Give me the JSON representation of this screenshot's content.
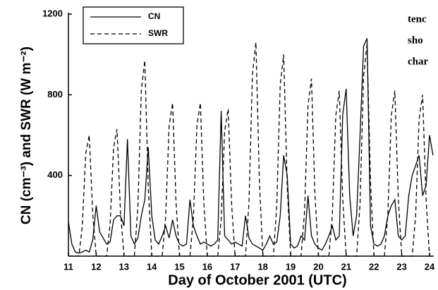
{
  "chart_data": {
    "type": "line",
    "xlabel": "Day of October 2001 (UTC)",
    "ylabel": "CN (cm⁻³) and SWR (W m⁻²)",
    "side_text": [
      "tenc",
      "sho",
      "char"
    ],
    "x": [
      11,
      11.125,
      11.25,
      11.375,
      11.5,
      11.625,
      11.75,
      11.875,
      12,
      12.125,
      12.25,
      12.375,
      12.5,
      12.625,
      12.75,
      12.875,
      13,
      13.125,
      13.25,
      13.375,
      13.5,
      13.625,
      13.75,
      13.875,
      14,
      14.125,
      14.25,
      14.375,
      14.5,
      14.625,
      14.75,
      14.875,
      15,
      15.125,
      15.25,
      15.375,
      15.5,
      15.625,
      15.75,
      15.875,
      16,
      16.125,
      16.25,
      16.375,
      16.5,
      16.625,
      16.75,
      16.875,
      17,
      17.125,
      17.25,
      17.375,
      17.5,
      17.625,
      17.75,
      17.875,
      18,
      18.125,
      18.25,
      18.375,
      18.5,
      18.625,
      18.75,
      18.875,
      19,
      19.125,
      19.25,
      19.375,
      19.5,
      19.625,
      19.75,
      19.875,
      20,
      20.125,
      20.25,
      20.375,
      20.5,
      20.625,
      20.75,
      20.875,
      21,
      21.125,
      21.25,
      21.375,
      21.5,
      21.625,
      21.75,
      21.875,
      22,
      22.125,
      22.25,
      22.375,
      22.5,
      22.625,
      22.75,
      22.875,
      23,
      23.125,
      23.25,
      23.375,
      23.5,
      23.625,
      23.75,
      23.875,
      24,
      24.125
    ],
    "series": [
      {
        "name": "CN",
        "color": "#000000",
        "linestyle": "solid",
        "values": [
          170,
          60,
          20,
          15,
          20,
          30,
          20,
          80,
          250,
          120,
          90,
          60,
          70,
          180,
          200,
          200,
          150,
          580,
          100,
          60,
          90,
          200,
          280,
          540,
          200,
          80,
          60,
          100,
          150,
          90,
          180,
          100,
          60,
          50,
          60,
          280,
          150,
          100,
          60,
          70,
          60,
          50,
          60,
          80,
          720,
          100,
          80,
          60,
          70,
          60,
          50,
          200,
          90,
          60,
          50,
          40,
          30,
          60,
          100,
          60,
          70,
          200,
          500,
          400,
          60,
          40,
          50,
          100,
          80,
          300,
          100,
          60,
          40,
          30,
          60,
          100,
          150,
          80,
          100,
          700,
          830,
          300,
          100,
          200,
          600,
          1040,
          1080,
          150,
          60,
          50,
          60,
          100,
          200,
          250,
          280,
          100,
          80,
          100,
          300,
          400,
          450,
          500,
          300,
          350,
          600,
          500
        ]
      },
      {
        "name": "SWR",
        "color": "#000000",
        "linestyle": "dashed",
        "values": [
          0,
          0,
          0,
          0,
          150,
          510,
          600,
          210,
          0,
          0,
          0,
          0,
          158,
          536,
          630,
          220,
          0,
          0,
          0,
          0,
          243,
          825,
          970,
          340,
          0,
          0,
          0,
          0,
          190,
          646,
          760,
          266,
          0,
          0,
          0,
          0,
          190,
          646,
          760,
          266,
          0,
          0,
          0,
          0,
          183,
          621,
          730,
          256,
          0,
          0,
          0,
          0,
          265,
          901,
          1060,
          371,
          0,
          0,
          0,
          0,
          250,
          850,
          1000,
          350,
          0,
          0,
          0,
          0,
          220,
          748,
          880,
          308,
          0,
          0,
          0,
          0,
          205,
          697,
          820,
          287,
          0,
          0,
          0,
          0,
          263,
          893,
          1050,
          368,
          0,
          0,
          0,
          0,
          205,
          697,
          820,
          287,
          0,
          0,
          0,
          0,
          200,
          680,
          800,
          280,
          0,
          0
        ]
      }
    ],
    "xlim": [
      11,
      24.15
    ],
    "xticks": [
      11,
      12,
      13,
      14,
      15,
      16,
      17,
      18,
      19,
      20,
      21,
      22,
      23,
      24
    ],
    "ylim": [
      0,
      1200
    ],
    "yticks": [
      400,
      800,
      1200
    ],
    "legend": "upper-left"
  }
}
